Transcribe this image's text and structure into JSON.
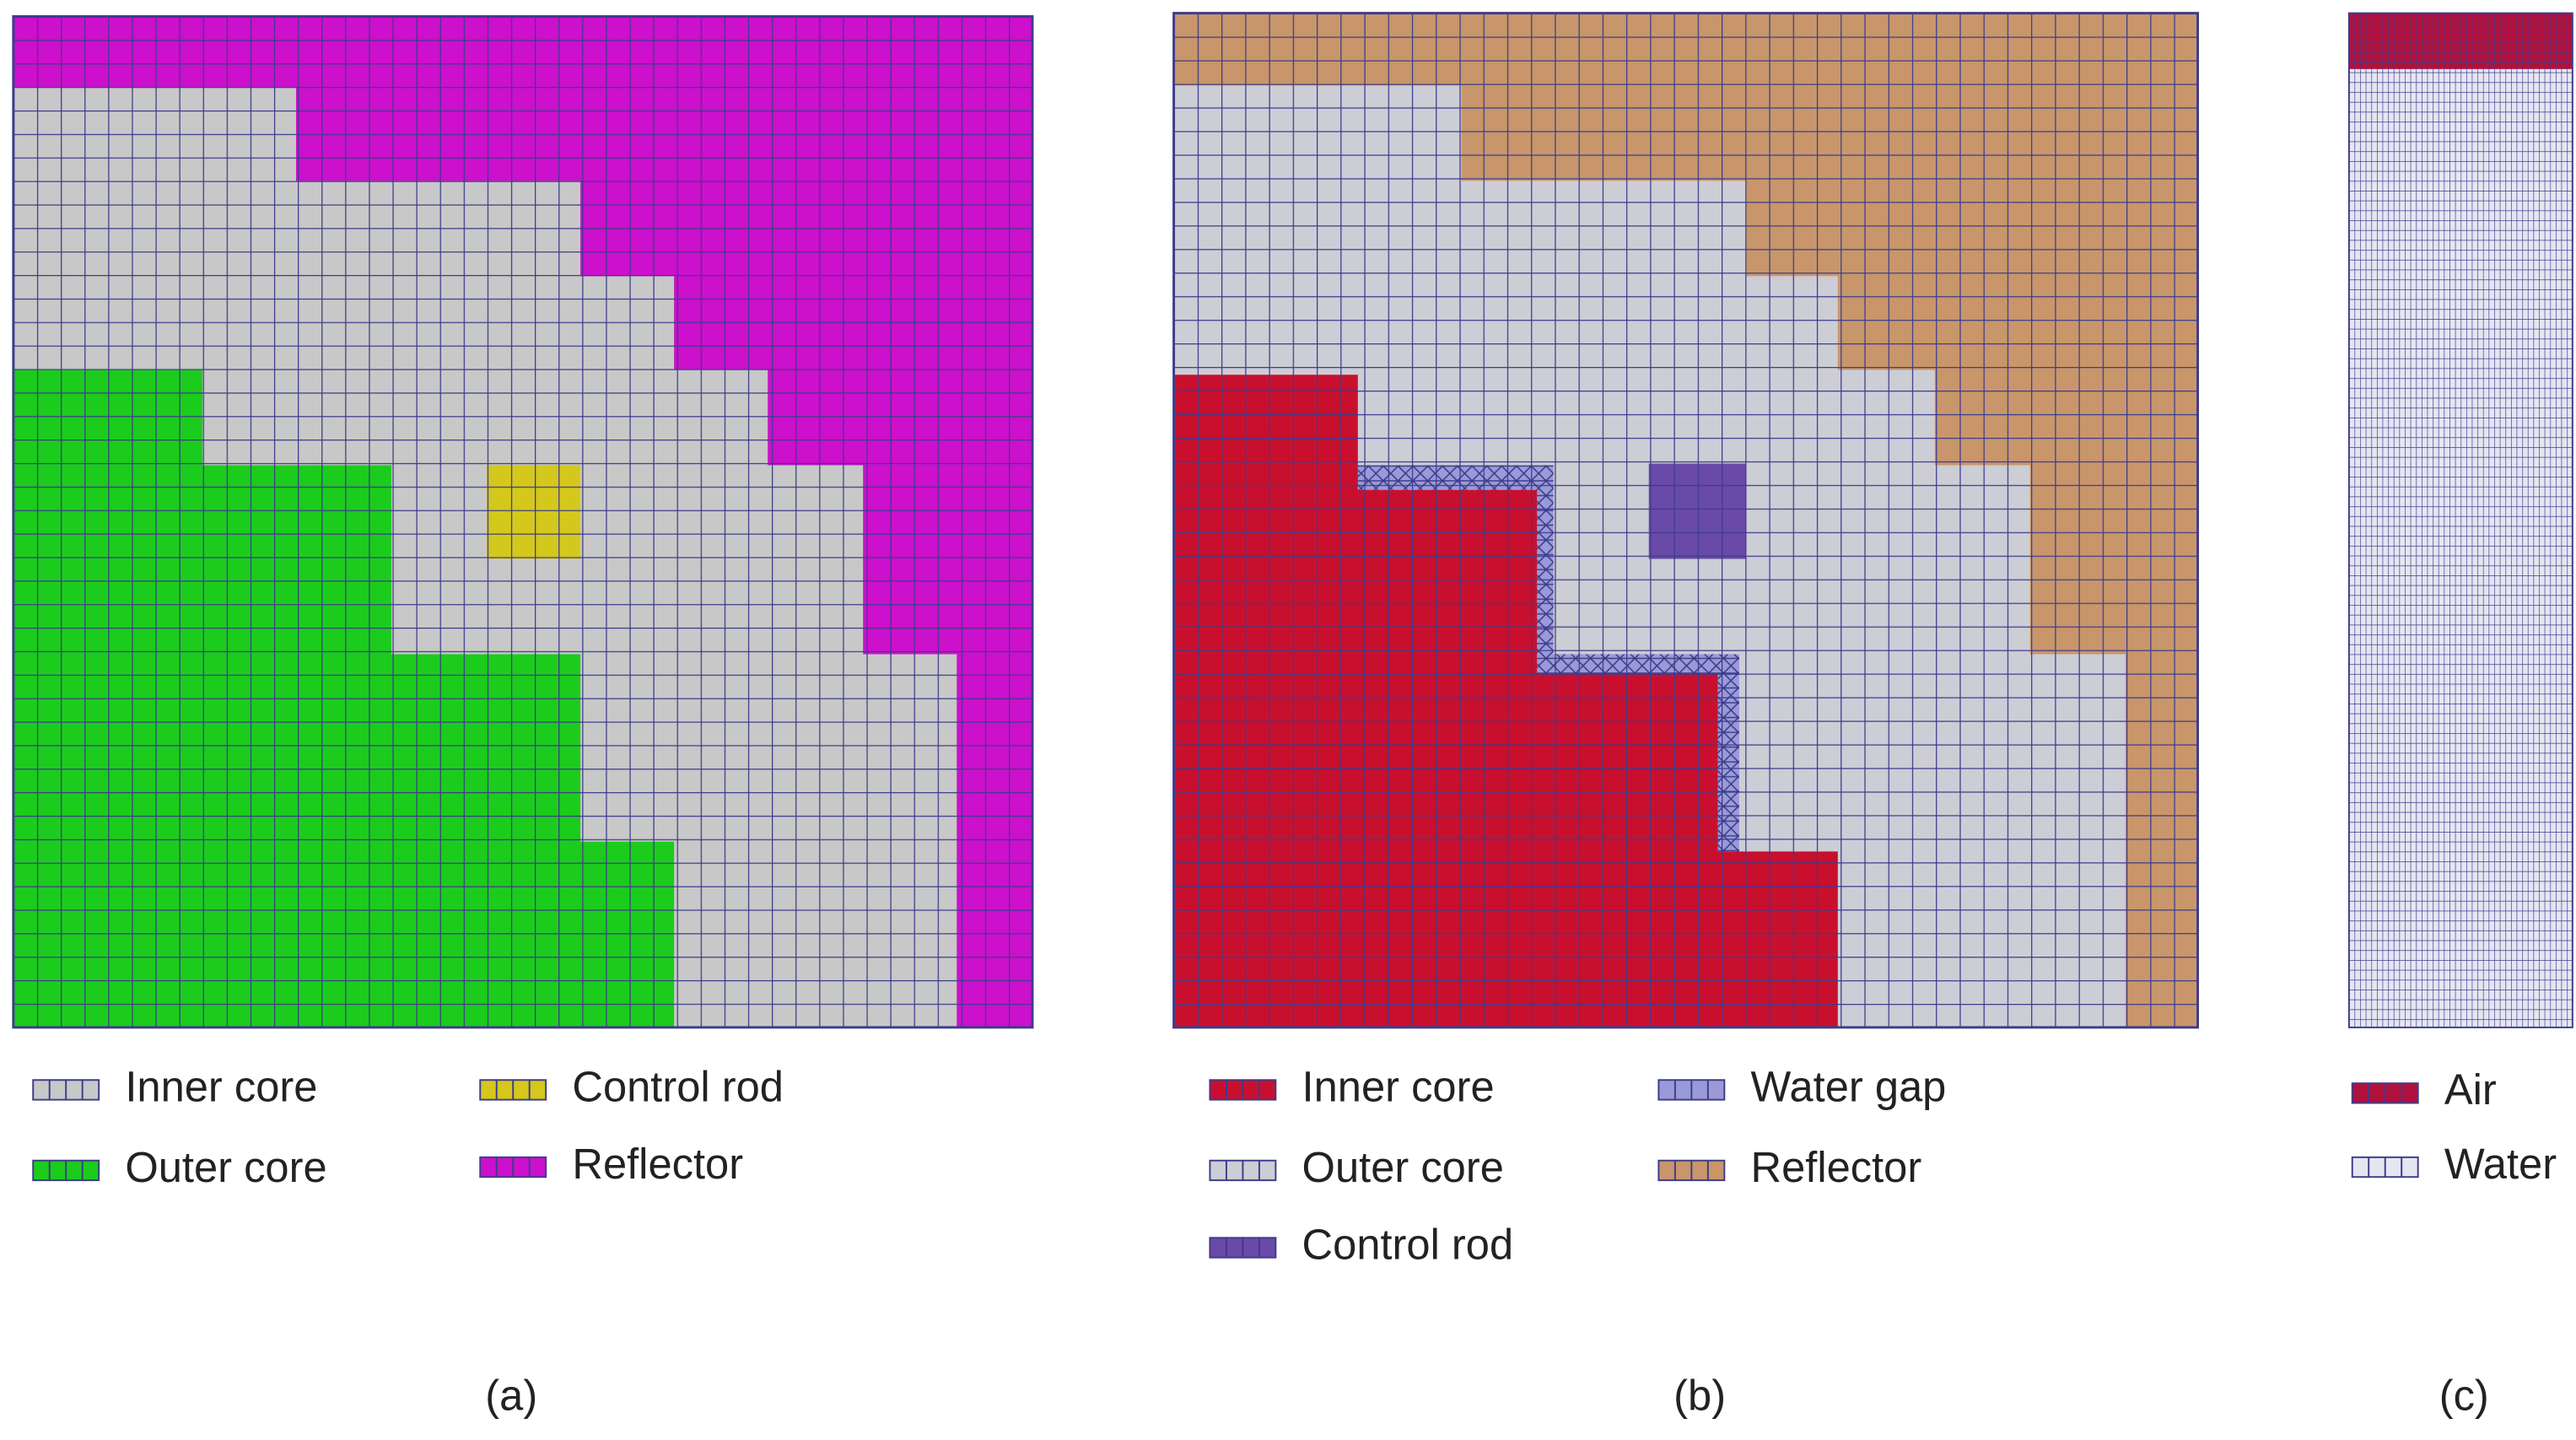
{
  "panels": [
    {
      "caption": "(a)",
      "legend": [
        "Inner core",
        "Control rod",
        "Outer core",
        "Reflector"
      ]
    },
    {
      "caption": "(b)",
      "legend": [
        "Inner core",
        "Water gap",
        "Outer core",
        "Reflector",
        "Control rod"
      ]
    },
    {
      "caption": "(c)",
      "legend": [
        "Air",
        "Water"
      ]
    }
  ]
}
